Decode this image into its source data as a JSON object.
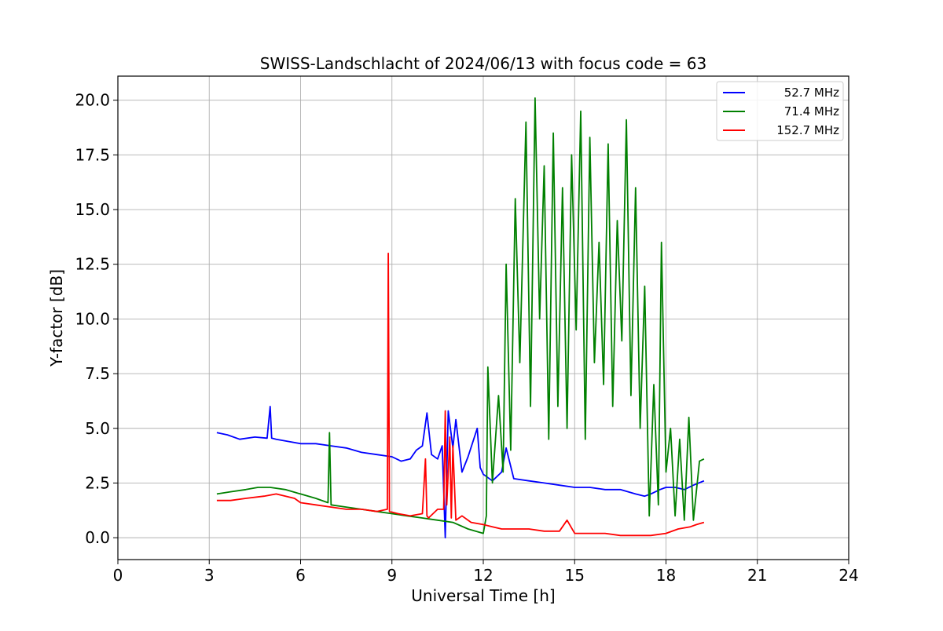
{
  "chart_data": {
    "type": "line",
    "title": "SWISS-Landschlacht of 2024/06/13 with focus code = 63",
    "xlabel": "Universal Time [h]",
    "ylabel": "Y-factor [dB]",
    "xlim": [
      0,
      24
    ],
    "ylim": [
      -1.0,
      21.1
    ],
    "xticks": [
      0,
      3,
      6,
      9,
      12,
      15,
      18,
      21,
      24
    ],
    "xtick_labels": [
      "0",
      "3",
      "6",
      "9",
      "12",
      "15",
      "18",
      "21",
      "24"
    ],
    "yticks": [
      0.0,
      2.5,
      5.0,
      7.5,
      10.0,
      12.5,
      15.0,
      17.5,
      20.0
    ],
    "ytick_labels": [
      "0.0",
      "2.5",
      "5.0",
      "7.5",
      "10.0",
      "12.5",
      "15.0",
      "17.5",
      "20.0"
    ],
    "grid": true,
    "legend_position": "top-right",
    "series": [
      {
        "name": " 52.7 MHz",
        "color": "#0000ff",
        "x": [
          3.25,
          3.6,
          4.0,
          4.5,
          4.9,
          5.0,
          5.05,
          5.2,
          5.6,
          6.0,
          6.5,
          7.0,
          7.5,
          8.0,
          8.5,
          9.0,
          9.3,
          9.6,
          9.8,
          10.0,
          10.15,
          10.3,
          10.5,
          10.65,
          10.75,
          10.85,
          11.0,
          11.1,
          11.3,
          11.5,
          11.8,
          11.9,
          12.0,
          12.3,
          12.6,
          12.75,
          13.0,
          13.5,
          14.0,
          14.5,
          15.0,
          15.5,
          16.0,
          16.5,
          17.0,
          17.3,
          17.5,
          17.8,
          18.0,
          18.3,
          18.6,
          18.9,
          19.25
        ],
        "y": [
          4.8,
          4.7,
          4.5,
          4.6,
          4.55,
          6.0,
          4.55,
          4.5,
          4.4,
          4.3,
          4.3,
          4.2,
          4.1,
          3.9,
          3.8,
          3.7,
          3.5,
          3.6,
          4.0,
          4.2,
          5.7,
          3.8,
          3.6,
          4.2,
          0.0,
          5.8,
          4.1,
          5.4,
          3.0,
          3.7,
          5.0,
          3.2,
          2.9,
          2.6,
          3.0,
          4.1,
          2.7,
          2.6,
          2.5,
          2.4,
          2.3,
          2.3,
          2.2,
          2.2,
          2.0,
          1.9,
          2.0,
          2.2,
          2.3,
          2.3,
          2.2,
          2.4,
          2.6
        ]
      },
      {
        "name": " 71.4 MHz",
        "color": "#008000",
        "x": [
          3.25,
          3.7,
          4.2,
          4.6,
          5.0,
          5.5,
          6.0,
          6.5,
          6.9,
          6.95,
          7.0,
          7.5,
          8.0,
          8.5,
          9.0,
          9.5,
          10.0,
          10.5,
          11.0,
          11.5,
          12.0,
          12.1,
          12.15,
          12.3,
          12.5,
          12.65,
          12.75,
          12.9,
          13.05,
          13.2,
          13.4,
          13.55,
          13.7,
          13.85,
          14.0,
          14.15,
          14.3,
          14.45,
          14.6,
          14.75,
          14.9,
          15.05,
          15.2,
          15.35,
          15.5,
          15.65,
          15.8,
          15.95,
          16.1,
          16.25,
          16.4,
          16.55,
          16.7,
          16.85,
          17.0,
          17.15,
          17.3,
          17.45,
          17.6,
          17.75,
          17.85,
          18.0,
          18.15,
          18.3,
          18.45,
          18.6,
          18.75,
          18.9,
          19.1,
          19.25
        ],
        "y": [
          2.0,
          2.1,
          2.2,
          2.3,
          2.3,
          2.2,
          2.0,
          1.8,
          1.6,
          4.8,
          1.5,
          1.4,
          1.3,
          1.2,
          1.1,
          1.0,
          0.9,
          0.8,
          0.7,
          0.4,
          0.2,
          1.0,
          7.8,
          2.5,
          6.5,
          3.0,
          12.5,
          4.0,
          15.5,
          8.0,
          19.0,
          6.0,
          20.1,
          10.0,
          17.0,
          4.5,
          18.5,
          6.0,
          16.0,
          5.0,
          17.5,
          9.5,
          19.5,
          4.5,
          18.3,
          8.0,
          13.5,
          7.0,
          18.0,
          6.0,
          14.5,
          9.0,
          19.1,
          6.5,
          16.0,
          5.0,
          11.5,
          1.0,
          7.0,
          1.5,
          13.5,
          3.0,
          5.0,
          1.0,
          4.5,
          0.8,
          5.5,
          0.8,
          3.5,
          3.6
        ]
      },
      {
        "name": "152.7 MHz",
        "color": "#ff0000",
        "x": [
          3.25,
          3.7,
          4.2,
          4.8,
          5.2,
          5.8,
          6.0,
          6.5,
          7.0,
          7.5,
          8.0,
          8.5,
          8.85,
          8.88,
          8.92,
          9.2,
          9.6,
          10.0,
          10.1,
          10.15,
          10.2,
          10.5,
          10.7,
          10.75,
          10.8,
          10.9,
          10.95,
          11.0,
          11.1,
          11.3,
          11.6,
          12.0,
          12.3,
          12.6,
          13.0,
          13.5,
          14.0,
          14.5,
          14.75,
          15.0,
          15.5,
          16.0,
          16.5,
          17.0,
          17.5,
          18.0,
          18.4,
          18.8,
          19.0,
          19.25
        ],
        "y": [
          1.7,
          1.7,
          1.8,
          1.9,
          2.0,
          1.8,
          1.6,
          1.5,
          1.4,
          1.3,
          1.3,
          1.2,
          1.3,
          13.0,
          1.2,
          1.1,
          1.0,
          1.1,
          3.6,
          1.0,
          0.9,
          1.3,
          1.3,
          5.8,
          1.5,
          4.6,
          0.9,
          4.2,
          0.8,
          1.0,
          0.7,
          0.6,
          0.5,
          0.4,
          0.4,
          0.4,
          0.3,
          0.3,
          0.8,
          0.2,
          0.2,
          0.2,
          0.1,
          0.1,
          0.1,
          0.2,
          0.4,
          0.5,
          0.6,
          0.7
        ]
      }
    ]
  }
}
